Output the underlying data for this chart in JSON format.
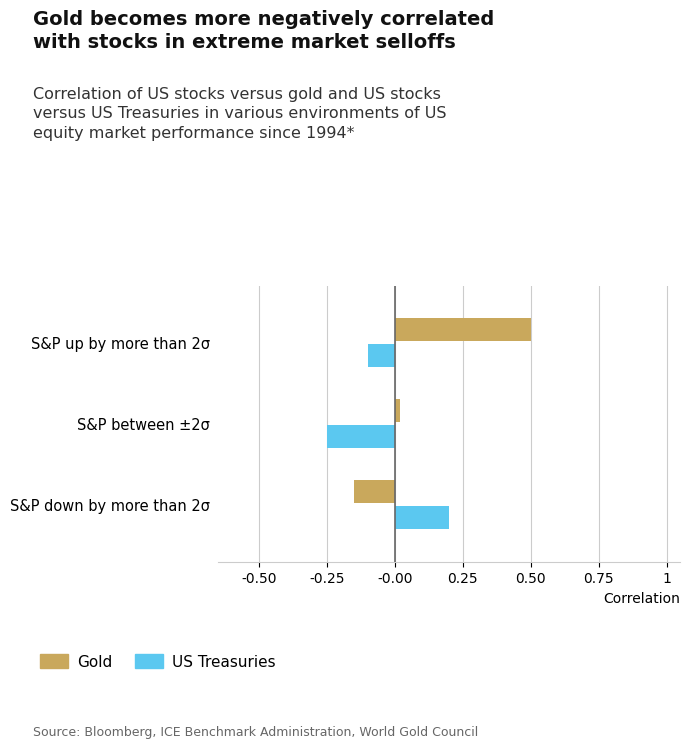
{
  "title": "Gold becomes more negatively correlated\nwith stocks in extreme market selloffs",
  "subtitle": "Correlation of US stocks versus gold and US stocks\nversus US Treasuries in various environments of US\nequity market performance since 1994*",
  "categories": [
    "S&P down by more than 2σ",
    "S&P between ±2σ",
    "S&P up by more than 2σ"
  ],
  "gold_values": [
    -0.15,
    0.02,
    0.5
  ],
  "treasury_values": [
    0.2,
    -0.25,
    -0.1
  ],
  "gold_color": "#C9A85C",
  "treasury_color": "#5BC8F0",
  "xlim": [
    -0.65,
    1.05
  ],
  "xticks": [
    -0.5,
    -0.25,
    -0.0,
    0.25,
    0.5,
    0.75,
    1.0
  ],
  "xtick_labels": [
    "-0.50",
    "-0.25",
    "-0.00",
    "0.25",
    "0.50",
    "0.75",
    "1"
  ],
  "xlabel": "Correlation",
  "source": "Source: Bloomberg, ICE Benchmark Administration, World Gold Council",
  "bar_height": 0.28,
  "bar_gap": 0.04,
  "title_fontsize": 14,
  "subtitle_fontsize": 11.5,
  "axis_fontsize": 10,
  "ylabel_fontsize": 10.5,
  "source_fontsize": 9,
  "legend_fontsize": 11,
  "grid_color": "#cccccc",
  "zero_line_color": "#666666",
  "background_color": "#ffffff",
  "text_color": "#111111",
  "subtitle_color": "#333333",
  "source_color": "#666666"
}
